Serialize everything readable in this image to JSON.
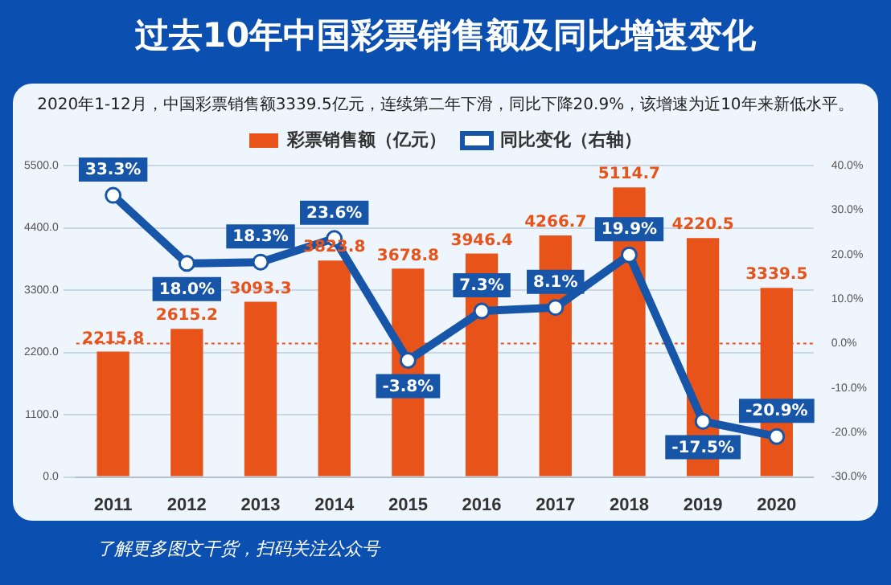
{
  "chart_data": {
    "type": "bar",
    "title": "过去10年中国彩票销售额及同比增速变化",
    "subtitle": "2020年1-12月，中国彩票销售额3339.5亿元，连续第二年下滑，同比下降20.9%，该增速为近10年来新低水平。",
    "categories": [
      "2011",
      "2012",
      "2013",
      "2014",
      "2015",
      "2016",
      "2017",
      "2018",
      "2019",
      "2020"
    ],
    "series": [
      {
        "name": "彩票销售额（亿元）",
        "color": "#e8531a",
        "values": [
          2215.8,
          2615.2,
          3093.3,
          3823.8,
          3678.8,
          3946.4,
          4266.7,
          5114.7,
          4220.5,
          3339.5
        ]
      },
      {
        "name": "同比变化（右轴）",
        "type": "line",
        "axis": "y2",
        "color": "#1655a8",
        "values": [
          33.3,
          18.0,
          18.3,
          23.6,
          -3.8,
          7.3,
          8.1,
          19.9,
          -17.5,
          -20.9
        ],
        "value_labels": [
          "33.3%",
          "18.0%",
          "18.3%",
          "23.6%",
          "-3.8%",
          "7.3%",
          "8.1%",
          "19.9%",
          "-17.5%",
          "-20.9%"
        ]
      }
    ],
    "ylim": [
      0,
      5500
    ],
    "yticks": [
      {
        "value": 0,
        "label": "0.0"
      },
      {
        "value": 1100,
        "label": "1100.0"
      },
      {
        "value": 2200,
        "label": "2200.0"
      },
      {
        "value": 3300,
        "label": "3300.0"
      },
      {
        "value": 4400,
        "label": "4400.0"
      },
      {
        "value": 5500,
        "label": "5500.0"
      }
    ],
    "y2lim": [
      -30,
      40
    ],
    "y2ticks": [
      {
        "value": -30,
        "label": "-30.0%"
      },
      {
        "value": -20,
        "label": "-20.0%"
      },
      {
        "value": -10,
        "label": "-10.0%"
      },
      {
        "value": 0,
        "label": "0.0%"
      },
      {
        "value": 10,
        "label": "10.0%"
      },
      {
        "value": 20,
        "label": "20.0%"
      },
      {
        "value": 30,
        "label": "30.0%"
      },
      {
        "value": 40,
        "label": "40.0%"
      }
    ],
    "ref_lines": [
      {
        "axis": "y2",
        "value": 0,
        "color": "#e8531a",
        "line_style": "dotted"
      }
    ],
    "grid": "y",
    "legend": "top",
    "marker": "circle",
    "data_labels": true,
    "annotations": [
      "了解更多图文干货，扫码关注公众号"
    ]
  }
}
